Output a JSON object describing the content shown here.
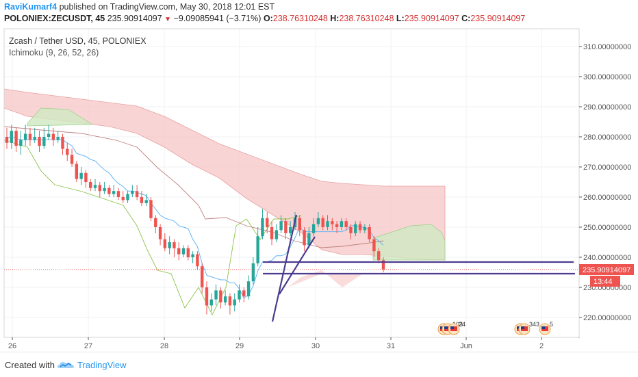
{
  "header": {
    "user": "RaviKumarf4",
    "published_text": " published on TradingView.com, May 30, 2018 12:01 EST",
    "symbol_line": "POLONIEX:ZECUSDT, 45",
    "last": "235.90914097",
    "arrow": "▼",
    "change": "−9.09085941 (−3.71%)",
    "o_label": "O:",
    "o": "238.76310248",
    "h_label": "H:",
    "h": "238.76310248",
    "l_label": "L:",
    "l": "235.90914097",
    "c_label": "C:",
    "c": "235.90914097"
  },
  "footer": {
    "created": "Created with",
    "brand": "TradingView"
  },
  "chart_data": {
    "type": "candlestick",
    "title": "Zcash / Tether USD, 45, POLONIEX",
    "indicator": "Ichimoku (9, 26, 52, 26)",
    "y_ticks": [
      "310.00000000",
      "300.00000000",
      "290.00000000",
      "280.00000000",
      "270.00000000",
      "260.00000000",
      "250.00000000",
      "240.00000000",
      "230.00000000",
      "220.00000000"
    ],
    "ylim": [
      214,
      318
    ],
    "x_ticks": [
      "26",
      "27",
      "28",
      "29",
      "30",
      "31",
      "Jun",
      "2"
    ],
    "current_price_label": "235.90914097",
    "countdown_label": "13:44",
    "colors": {
      "up": "#26a69a",
      "down": "#ef5350",
      "tenkan": "#64b5f6",
      "kijun": "#c08080",
      "chikou": "#8bc34a",
      "cloud_bear": "#f7c5c5",
      "cloud_bull": "#cfe9c2",
      "trend": "#4c3b8f"
    },
    "candles": [
      [
        280,
        278,
        283,
        276
      ],
      [
        278,
        282,
        284,
        276
      ],
      [
        282,
        277,
        283,
        275
      ],
      [
        277,
        279,
        282,
        274
      ],
      [
        279,
        281,
        284,
        277
      ],
      [
        281,
        279,
        283,
        277
      ],
      [
        279,
        280,
        283,
        278
      ],
      [
        280,
        277,
        282,
        275
      ],
      [
        277,
        280,
        283,
        276
      ],
      [
        280,
        281,
        284,
        279
      ],
      [
        281,
        279,
        283,
        277
      ],
      [
        279,
        280,
        282,
        278
      ],
      [
        280,
        276,
        281,
        274
      ],
      [
        276,
        274,
        278,
        272
      ],
      [
        274,
        271,
        276,
        270
      ],
      [
        271,
        266,
        272,
        265
      ],
      [
        266,
        268,
        270,
        264
      ],
      [
        268,
        265,
        269,
        263
      ],
      [
        265,
        263,
        266,
        262
      ],
      [
        263,
        264,
        266,
        262
      ],
      [
        264,
        262,
        265,
        260
      ],
      [
        262,
        263,
        265,
        261
      ],
      [
        263,
        261,
        264,
        260
      ],
      [
        261,
        262,
        264,
        260
      ],
      [
        262,
        260,
        263,
        259
      ],
      [
        260,
        259,
        262,
        258
      ],
      [
        259,
        261,
        262,
        258
      ],
      [
        261,
        262,
        264,
        260
      ],
      [
        262,
        260,
        264,
        259
      ],
      [
        260,
        258,
        262,
        257
      ],
      [
        258,
        259,
        261,
        257
      ],
      [
        259,
        253,
        260,
        252
      ],
      [
        253,
        250,
        254,
        248
      ],
      [
        250,
        246,
        251,
        244
      ],
      [
        246,
        243,
        248,
        242
      ],
      [
        243,
        245,
        247,
        241
      ],
      [
        245,
        243,
        246,
        240
      ],
      [
        243,
        241,
        245,
        239
      ],
      [
        241,
        243,
        244,
        240
      ],
      [
        243,
        240,
        244,
        239
      ],
      [
        240,
        241,
        242,
        238
      ],
      [
        241,
        237,
        242,
        236
      ],
      [
        237,
        230,
        238,
        228
      ],
      [
        230,
        224,
        232,
        221
      ],
      [
        224,
        226,
        228,
        222
      ],
      [
        226,
        229,
        231,
        224
      ],
      [
        229,
        225,
        230,
        223
      ],
      [
        225,
        227,
        229,
        224
      ],
      [
        227,
        224,
        228,
        221
      ],
      [
        224,
        226,
        228,
        222
      ],
      [
        226,
        229,
        231,
        225
      ],
      [
        229,
        227,
        230,
        225
      ],
      [
        227,
        232,
        234,
        226
      ],
      [
        232,
        238,
        240,
        231
      ],
      [
        238,
        247,
        250,
        237
      ],
      [
        247,
        253,
        256,
        246
      ],
      [
        253,
        250,
        255,
        248
      ],
      [
        250,
        246,
        252,
        244
      ],
      [
        246,
        249,
        251,
        245
      ],
      [
        249,
        252,
        254,
        248
      ],
      [
        252,
        248,
        253,
        246
      ],
      [
        248,
        250,
        252,
        247
      ],
      [
        250,
        253,
        255,
        249
      ],
      [
        253,
        249,
        254,
        247
      ],
      [
        249,
        244,
        250,
        242
      ],
      [
        244,
        248,
        250,
        243
      ],
      [
        248,
        251,
        253,
        247
      ],
      [
        251,
        253,
        255,
        250
      ],
      [
        253,
        250,
        254,
        249
      ],
      [
        250,
        252,
        254,
        249
      ],
      [
        252,
        251,
        253,
        249
      ],
      [
        251,
        250,
        252,
        248
      ],
      [
        250,
        252,
        253,
        249
      ],
      [
        252,
        250,
        253,
        249
      ],
      [
        250,
        248,
        251,
        246
      ],
      [
        248,
        251,
        252,
        247
      ],
      [
        251,
        249,
        252,
        248
      ],
      [
        249,
        250,
        251,
        248
      ],
      [
        250,
        246,
        251,
        245
      ],
      [
        246,
        242,
        247,
        240
      ],
      [
        242,
        239,
        243,
        238
      ],
      [
        239,
        236,
        240,
        235
      ]
    ]
  }
}
